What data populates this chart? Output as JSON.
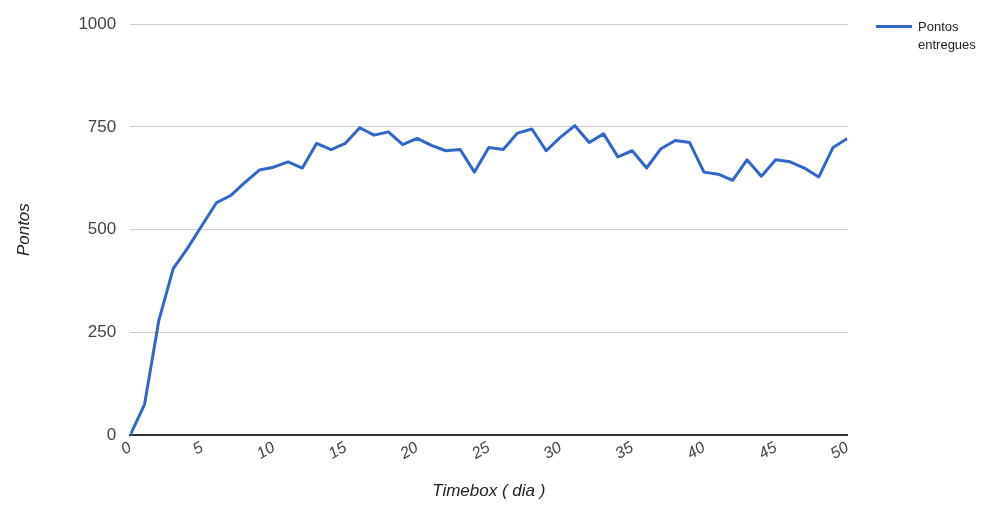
{
  "chart_data": {
    "type": "line",
    "xlabel": "Timebox ( dia )",
    "ylabel": "Pontos",
    "x": [
      0,
      1,
      2,
      3,
      4,
      5,
      6,
      7,
      8,
      9,
      10,
      11,
      12,
      13,
      14,
      15,
      16,
      17,
      18,
      19,
      20,
      21,
      22,
      23,
      24,
      25,
      26,
      27,
      28,
      29,
      30,
      31,
      32,
      33,
      34,
      35,
      36,
      37,
      38,
      39,
      40,
      41,
      42,
      43,
      44,
      45,
      46,
      47,
      48,
      49,
      50
    ],
    "series": [
      {
        "name": "Pontos entregues",
        "color": "#3366cc",
        "values": [
          0,
          75,
          280,
          405,
          455,
          510,
          565,
          583,
          615,
          645,
          652,
          665,
          650,
          710,
          695,
          710,
          748,
          730,
          738,
          707,
          722,
          705,
          692,
          695,
          640,
          700,
          695,
          735,
          745,
          692,
          725,
          753,
          712,
          733,
          677,
          692,
          650,
          697,
          717,
          712,
          640,
          635,
          620,
          670,
          630,
          670,
          665,
          650,
          628,
          700,
          722
        ]
      }
    ],
    "xlim": [
      0,
      50
    ],
    "xticks": [
      0,
      5,
      10,
      15,
      20,
      25,
      30,
      35,
      40,
      45,
      50
    ],
    "ylim": [
      0,
      1000
    ],
    "yticks": [
      0,
      250,
      500,
      750,
      1000
    ],
    "grid": "y",
    "legend": "top right",
    "marker": "none",
    "line_style": "solid"
  }
}
